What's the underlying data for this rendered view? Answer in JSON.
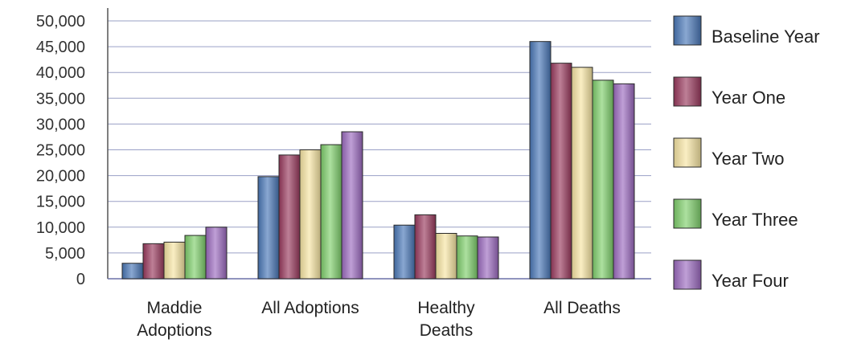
{
  "chart_data": {
    "type": "bar",
    "title": "",
    "xlabel": "",
    "ylabel": "",
    "ylim": [
      0,
      50000
    ],
    "yticks": [
      0,
      5000,
      10000,
      15000,
      20000,
      25000,
      30000,
      35000,
      40000,
      45000,
      50000
    ],
    "ytick_labels": [
      "0",
      "5,000",
      "10,000",
      "15,000",
      "20,000",
      "25,000",
      "30,000",
      "35,000",
      "40,000",
      "45,000",
      "50,000"
    ],
    "grid": "horizontal",
    "legend_position": "right",
    "categories": [
      [
        "Maddie",
        "Adoptions"
      ],
      [
        "All Adoptions"
      ],
      [
        "Healthy",
        "Deaths"
      ],
      [
        "All Deaths"
      ]
    ],
    "series": [
      {
        "name": "Baseline Year",
        "color": "#4a78b8",
        "values": [
          3000,
          19800,
          10400,
          46000
        ]
      },
      {
        "name": "Year One",
        "color": "#9a3a5e",
        "values": [
          6800,
          24000,
          12400,
          41800
        ]
      },
      {
        "name": "Year Two",
        "color": "#f7e5a3",
        "values": [
          7100,
          25000,
          8800,
          41000
        ]
      },
      {
        "name": "Year Three",
        "color": "#7fcf6c",
        "values": [
          8400,
          26000,
          8300,
          38500
        ]
      },
      {
        "name": "Year Four",
        "color": "#9c6bc0",
        "values": [
          10000,
          28500,
          8100,
          37800
        ]
      }
    ]
  }
}
